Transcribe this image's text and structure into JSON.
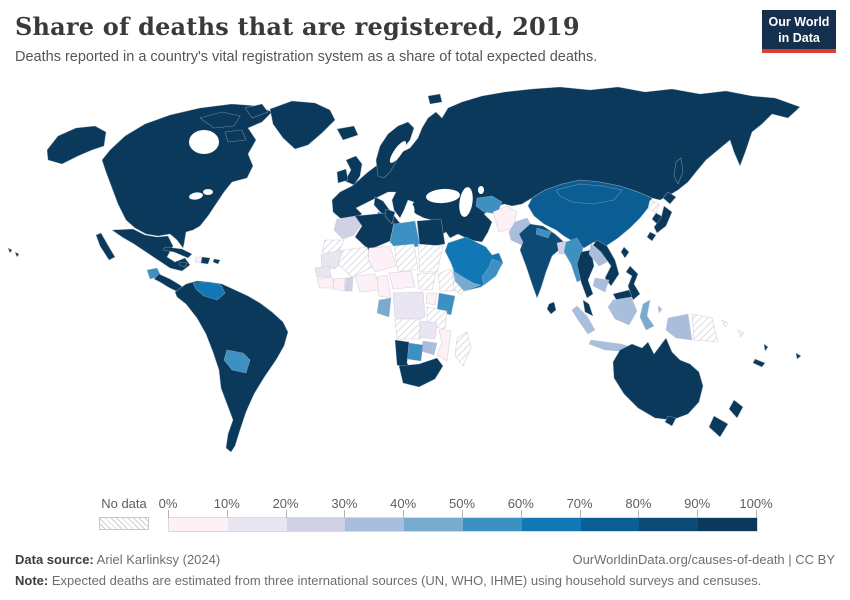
{
  "header": {
    "title": "Share of deaths that are registered, 2019",
    "subtitle": "Deaths reported in a country's vital registration system as a share of total expected deaths.",
    "logo_line1": "Our World",
    "logo_line2": "in Data"
  },
  "brand": {
    "logo_bg": "#14304e",
    "logo_accent": "#dc3e32"
  },
  "legend": {
    "no_data_label": "No data",
    "tick_labels": [
      "0%",
      "10%",
      "20%",
      "30%",
      "40%",
      "50%",
      "60%",
      "70%",
      "80%",
      "90%",
      "100%"
    ],
    "bins": [
      {
        "range": "0-10",
        "color": "#fdf1f7"
      },
      {
        "range": "10-20",
        "color": "#eae6f1"
      },
      {
        "range": "20-30",
        "color": "#d1d1e6"
      },
      {
        "range": "30-40",
        "color": "#a9bedc"
      },
      {
        "range": "40-50",
        "color": "#79abd0"
      },
      {
        "range": "50-60",
        "color": "#3d90c2"
      },
      {
        "range": "60-70",
        "color": "#1178b5"
      },
      {
        "range": "70-80",
        "color": "#0b5e93"
      },
      {
        "range": "80-90",
        "color": "#0d4a76"
      },
      {
        "range": "90-100",
        "color": "#0a395b"
      }
    ],
    "no_data_hatch_color": "#cfcfd7"
  },
  "map": {
    "regions": {
      "alaska": "90-100",
      "north-america": "90-100",
      "arctic-islands-1": "90-100",
      "arctic-islands-2": "90-100",
      "arctic-islands-3": "90-100",
      "greenland": "90-100",
      "iceland": "90-100",
      "hawaii-1": "90-100",
      "hawaii-2": "90-100",
      "mexico": "90-100",
      "baja": "90-100",
      "guatemala": "50-60",
      "central-america": "90-100",
      "cuba": "90-100",
      "haiti": "0-10",
      "dominican-republic": "90-100",
      "jamaica": "90-100",
      "puerto-rico": "90-100",
      "south-america": "90-100",
      "venezuela": "60-70",
      "bolivia": "50-60",
      "eurasia": "90-100",
      "scandinavia": "90-100",
      "svalbard": "90-100",
      "uk": "90-100",
      "ireland": "90-100",
      "italy": "90-100",
      "sicily": "90-100",
      "sardinia": "90-100",
      "morocco": "20-30",
      "western-sahara": "no-data",
      "algeria": "90-100",
      "tunisia": "90-100",
      "libya": "50-60",
      "egypt": "90-100",
      "mauritania": "10-20",
      "mali": "no-data",
      "niger": "0-10",
      "chad": "no-data",
      "sudan": "no-data",
      "senegal": "10-20",
      "guinea": "0-10",
      "ivory-coast": "0-10",
      "ghana": "20-30",
      "nigeria": "0-10",
      "cameroon": "0-10",
      "central-african-republic": "0-10",
      "south-sudan": "no-data",
      "ethiopia": "no-data",
      "somalia": "no-data",
      "kenya": "50-60",
      "uganda": "0-10",
      "drc": "10-20",
      "gabon": "40-50",
      "tanzania": "no-data",
      "angola": "no-data",
      "zambia": "10-20",
      "mozambique": "0-10",
      "zimbabwe": "30-40",
      "botswana": "50-60",
      "namibia": "90-100",
      "south-africa": "90-100",
      "madagascar": "no-data",
      "saudi-arabia": "60-70",
      "yemen": "40-50",
      "oman": "50-60",
      "turkmenistan-uzbekistan": "50-60",
      "afghanistan": "0-10",
      "pakistan": "30-40",
      "india": "80-90",
      "nepal": "50-60",
      "bangladesh": "20-30",
      "sri-lanka": "90-100",
      "china": "70-80",
      "mongolia": "70-80",
      "north-korea": "no-data",
      "south-korea": "90-100",
      "sakhalin": "90-100",
      "japan-hokkaido": "90-100",
      "japan-honshu": "90-100",
      "japan-kyushu": "90-100",
      "taiwan": "90-100",
      "myanmar": "50-60",
      "thailand": "90-100",
      "laos": "30-40",
      "vietnam": "90-100",
      "cambodia": "30-40",
      "malaysia": "90-100",
      "malaysia-borneo": "90-100",
      "sumatra": "30-40",
      "java": "30-40",
      "kalimantan": "30-40",
      "sulawesi": "40-50",
      "moluccas": "30-40",
      "lesser-sunda": "30-40",
      "timor": "90-100",
      "west-papua": "30-40",
      "papua-new-guinea": "no-data",
      "png-islands": "no-data",
      "philippines": "90-100",
      "solomon-islands": "no-data",
      "vanuatu": "90-100",
      "fiji": "90-100",
      "new-caledonia": "90-100",
      "australia": "90-100",
      "tasmania": "90-100",
      "new-zealand-north": "90-100",
      "new-zealand-south": "90-100"
    }
  },
  "footer": {
    "source_label": "Data source:",
    "source_value": " Ariel Karlinksy (2024)",
    "link": "OurWorldinData.org/causes-of-death | CC BY",
    "note_label": "Note:",
    "note_value": " Expected deaths are estimated from three international sources (UN, WHO, IHME) using household surveys and censuses."
  }
}
